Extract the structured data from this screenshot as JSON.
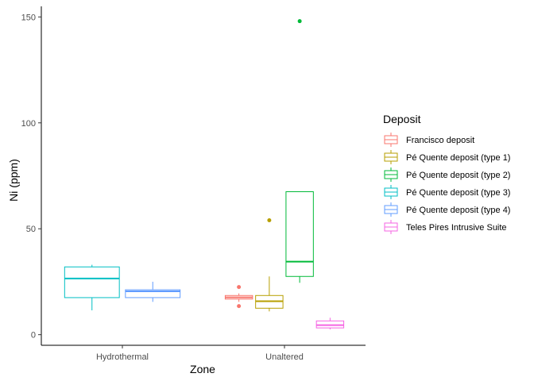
{
  "chart_data": {
    "type": "boxplot",
    "xlabel": "Zone",
    "ylabel": "Ni (ppm)",
    "categories": [
      "Hydrothermal",
      "Unaltered"
    ],
    "yticks": [
      0,
      50,
      100,
      150
    ],
    "ylim": [
      -5,
      155
    ],
    "legend_title": "Deposit",
    "legend_position": "right",
    "grid": false,
    "series": [
      {
        "name": "Francisco deposit",
        "color": "#F8766D",
        "boxes": [
          {
            "category": "Unaltered",
            "whisker_low": 15.5,
            "q1": 16.8,
            "median": 17.6,
            "q3": 18.5,
            "whisker_high": 19.5,
            "outliers": [
              13.5,
              22.5
            ]
          }
        ]
      },
      {
        "name": "Pé Quente deposit (type 1)",
        "color": "#B79F00",
        "boxes": [
          {
            "category": "Unaltered",
            "whisker_low": 11,
            "q1": 12.5,
            "median": 15.8,
            "q3": 18.5,
            "whisker_high": 27.5,
            "outliers": [
              54
            ]
          }
        ]
      },
      {
        "name": "Pé Quente deposit (type 2)",
        "color": "#00BA38",
        "boxes": [
          {
            "category": "Unaltered",
            "whisker_low": 24.5,
            "q1": 27.5,
            "median": 34.5,
            "q3": 67.5,
            "whisker_high": 67.5,
            "outliers": [
              148
            ]
          }
        ]
      },
      {
        "name": "Pé Quente deposit (type 3)",
        "color": "#00BFC4",
        "boxes": [
          {
            "category": "Hydrothermal",
            "whisker_low": 11.5,
            "q1": 17.5,
            "median": 26.5,
            "q3": 32,
            "whisker_high": 33,
            "outliers": []
          }
        ]
      },
      {
        "name": "Pé Quente deposit (type 4)",
        "color": "#619CFF",
        "boxes": [
          {
            "category": "Hydrothermal",
            "whisker_low": 15.5,
            "q1": 17.5,
            "median": 20.5,
            "q3": 21.2,
            "whisker_high": 25,
            "outliers": []
          }
        ]
      },
      {
        "name": "Teles Pires Intrusive Suite",
        "color": "#F564E3",
        "boxes": [
          {
            "category": "Unaltered",
            "whisker_low": 2.5,
            "q1": 3.2,
            "median": 4.5,
            "q3": 6.5,
            "whisker_high": 8,
            "outliers": []
          }
        ]
      }
    ]
  }
}
